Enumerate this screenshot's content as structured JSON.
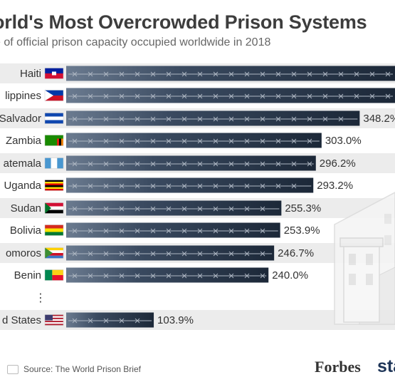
{
  "header": {
    "title": "orld's Most Overcrowded Prison Systems",
    "subtitle": "e of official prison capacity occupied worldwide in 2018"
  },
  "footer": {
    "source": "Source: The World Prison Brief",
    "forbes": "Forbes",
    "statista": "sta"
  },
  "colors": {
    "bar_dark": "#1c2838",
    "bar_light": "#6b7b90",
    "row_band": "#ececec",
    "text": "#333333"
  },
  "chart_data": {
    "type": "bar",
    "orientation": "horizontal",
    "title": "orld's Most Overcrowded Prison Systems",
    "subtitle": "e of official prison capacity occupied worldwide in 2018",
    "categories": [
      "Haiti",
      "lippines",
      "Salvador",
      "Zambia",
      "atemala",
      "Uganda",
      "Sudan",
      "Bolivia",
      "omoros",
      "Benin",
      "d States"
    ],
    "values": [
      null,
      null,
      348.2,
      303.0,
      296.2,
      293.2,
      255.3,
      253.9,
      246.7,
      240.0,
      103.9
    ],
    "value_labels": [
      "",
      "",
      "348.2%",
      "303.0%",
      "296.2%",
      "293.2%",
      "255.3%",
      "253.9%",
      "246.7%",
      "240.0%",
      "103.9%"
    ],
    "gap_after_index": 9,
    "gap_symbol": "⋮",
    "flags": [
      "haiti",
      "philippines",
      "el-salvador",
      "zambia",
      "guatemala",
      "uganda",
      "sudan",
      "bolivia",
      "comoros",
      "benin",
      "united-states"
    ],
    "legend": "none",
    "grid": false
  }
}
